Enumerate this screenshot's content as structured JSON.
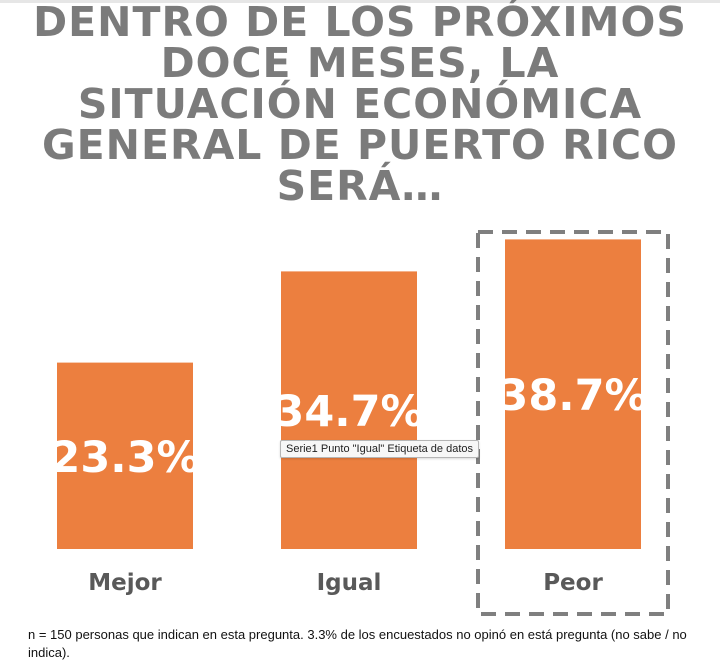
{
  "chart_data": {
    "type": "bar",
    "title": "DENTRO DE LOS PRÓXIMOS DOCE MESES, LA SITUACIÓN ECONÓMICA GENERAL DE PUERTO RICO SERÁ…",
    "title_lines": [
      "DENTRO DE LOS PRÓXIMOS",
      "DOCE MESES, LA",
      "SITUACIÓN ECONÓMICA",
      "GENERAL DE PUERTO RICO",
      "SERÁ…"
    ],
    "categories": [
      "Mejor",
      "Igual",
      "Peor"
    ],
    "values": [
      23.3,
      34.7,
      38.7
    ],
    "value_labels": [
      "23.3%",
      "34.7%",
      "38.7%"
    ],
    "ylim": [
      0,
      40
    ],
    "highlighted_category": "Peor",
    "bar_color": "#ec7f3f",
    "label_color": "#ffffff",
    "category_label_color": "#595959",
    "highlight_border_color": "#7f7f7f",
    "grid": false,
    "legend": "none"
  },
  "tooltip": {
    "text": "Serie1 Punto \"Igual\" Etiqueta de datos"
  },
  "footnote": {
    "text": "n = 150 personas que indican en esta pregunta. 3.3% de los encuestados no opinó en está pregunta (no sabe / no indica)."
  }
}
